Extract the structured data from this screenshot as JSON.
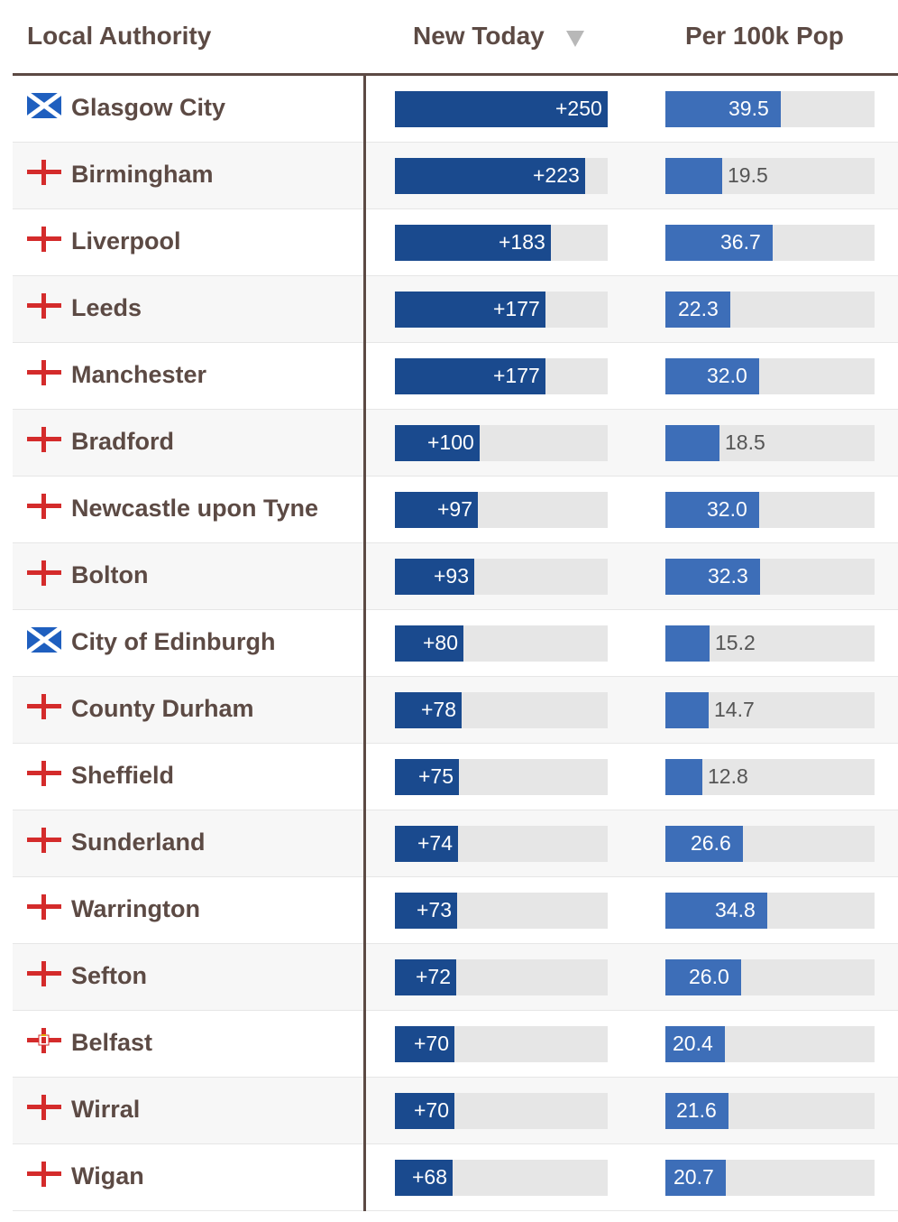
{
  "table": {
    "columns": {
      "name": "Local Authority",
      "new_today": "New Today",
      "per_100k": "Per 100k Pop"
    },
    "sort_indicator": "sort-desc-icon"
  },
  "colors": {
    "new_today_bar": "#1a4a8e",
    "per_100k_bar": "#3d6eb8",
    "track": "#e6e6e6",
    "text": "#5c4a44"
  },
  "chart_data": {
    "type": "table",
    "new_today_max": 250,
    "per_100k_max": 39.5,
    "rows": [
      {
        "flag": "scotland-flag-icon",
        "name": "Glasgow City",
        "new_today": 250,
        "new_today_label": "+250",
        "per_100k": 39.5,
        "per_100k_label": "39.5"
      },
      {
        "flag": "england-flag-icon",
        "name": "Birmingham",
        "new_today": 223,
        "new_today_label": "+223",
        "per_100k": 19.5,
        "per_100k_label": "19.5"
      },
      {
        "flag": "england-flag-icon",
        "name": "Liverpool",
        "new_today": 183,
        "new_today_label": "+183",
        "per_100k": 36.7,
        "per_100k_label": "36.7"
      },
      {
        "flag": "england-flag-icon",
        "name": "Leeds",
        "new_today": 177,
        "new_today_label": "+177",
        "per_100k": 22.3,
        "per_100k_label": "22.3"
      },
      {
        "flag": "england-flag-icon",
        "name": "Manchester",
        "new_today": 177,
        "new_today_label": "+177",
        "per_100k": 32.0,
        "per_100k_label": "32.0"
      },
      {
        "flag": "england-flag-icon",
        "name": "Bradford",
        "new_today": 100,
        "new_today_label": "+100",
        "per_100k": 18.5,
        "per_100k_label": "18.5"
      },
      {
        "flag": "england-flag-icon",
        "name": "Newcastle upon Tyne",
        "new_today": 97,
        "new_today_label": "+97",
        "per_100k": 32.0,
        "per_100k_label": "32.0"
      },
      {
        "flag": "england-flag-icon",
        "name": "Bolton",
        "new_today": 93,
        "new_today_label": "+93",
        "per_100k": 32.3,
        "per_100k_label": "32.3"
      },
      {
        "flag": "scotland-flag-icon",
        "name": "City of Edinburgh",
        "new_today": 80,
        "new_today_label": "+80",
        "per_100k": 15.2,
        "per_100k_label": "15.2"
      },
      {
        "flag": "england-flag-icon",
        "name": "County Durham",
        "new_today": 78,
        "new_today_label": "+78",
        "per_100k": 14.7,
        "per_100k_label": "14.7"
      },
      {
        "flag": "england-flag-icon",
        "name": "Sheffield",
        "new_today": 75,
        "new_today_label": "+75",
        "per_100k": 12.8,
        "per_100k_label": "12.8"
      },
      {
        "flag": "england-flag-icon",
        "name": "Sunderland",
        "new_today": 74,
        "new_today_label": "+74",
        "per_100k": 26.6,
        "per_100k_label": "26.6"
      },
      {
        "flag": "england-flag-icon",
        "name": "Warrington",
        "new_today": 73,
        "new_today_label": "+73",
        "per_100k": 34.8,
        "per_100k_label": "34.8"
      },
      {
        "flag": "england-flag-icon",
        "name": "Sefton",
        "new_today": 72,
        "new_today_label": "+72",
        "per_100k": 26.0,
        "per_100k_label": "26.0"
      },
      {
        "flag": "northern-ireland-flag-icon",
        "name": "Belfast",
        "new_today": 70,
        "new_today_label": "+70",
        "per_100k": 20.4,
        "per_100k_label": "20.4"
      },
      {
        "flag": "england-flag-icon",
        "name": "Wirral",
        "new_today": 70,
        "new_today_label": "+70",
        "per_100k": 21.6,
        "per_100k_label": "21.6"
      },
      {
        "flag": "england-flag-icon",
        "name": "Wigan",
        "new_today": 68,
        "new_today_label": "+68",
        "per_100k": 20.7,
        "per_100k_label": "20.7"
      }
    ]
  }
}
